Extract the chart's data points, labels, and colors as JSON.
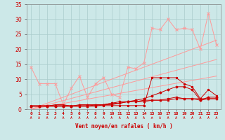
{
  "xlabel": "Vent moyen/en rafales ( km/h )",
  "bg_color": "#cce8e8",
  "grid_color": "#aacccc",
  "x": [
    0,
    1,
    2,
    3,
    4,
    5,
    6,
    7,
    8,
    9,
    10,
    11,
    12,
    13,
    14,
    15,
    16,
    17,
    18,
    19,
    20,
    21,
    22,
    23
  ],
  "line_light1": [
    14,
    8.5,
    8.5,
    8.5,
    1.5,
    7,
    11,
    4,
    8.5,
    10.5,
    5,
    4,
    14,
    13.5,
    15.5,
    27,
    26.5,
    30,
    26.5,
    27,
    26.5,
    20,
    32,
    21.5
  ],
  "line_light_slope1": [
    0.0,
    0.48,
    0.96,
    1.44,
    1.92,
    2.4,
    2.88,
    3.36,
    3.84,
    4.32,
    4.8,
    5.28,
    5.76,
    6.24,
    6.72,
    7.2,
    7.68,
    8.16,
    8.64,
    9.12,
    9.6,
    10.08,
    10.56,
    11.04
  ],
  "line_light_slope2": [
    0.0,
    0.72,
    1.44,
    2.16,
    2.88,
    3.6,
    4.32,
    5.04,
    5.76,
    6.48,
    7.2,
    7.92,
    8.64,
    9.36,
    10.08,
    10.8,
    11.52,
    12.24,
    12.96,
    13.68,
    14.4,
    15.12,
    15.84,
    16.56
  ],
  "line_light_slope3": [
    0.0,
    1.0,
    2.0,
    3.0,
    4.0,
    5.0,
    6.0,
    7.0,
    8.0,
    9.0,
    10.0,
    11.0,
    12.0,
    13.0,
    14.0,
    15.0,
    16.0,
    17.0,
    18.0,
    19.0,
    20.0,
    21.0,
    22.0,
    23.0
  ],
  "line_dark1": [
    1.2,
    1.2,
    1.2,
    1.2,
    1.2,
    1.2,
    1.2,
    1.2,
    1.2,
    1.2,
    1.2,
    1.2,
    1.2,
    1.2,
    1.2,
    10.5,
    10.5,
    10.5,
    10.5,
    8.5,
    7.5,
    3.5,
    6.5,
    4.5
  ],
  "line_dark2": [
    1.0,
    1.0,
    1.0,
    1.0,
    1.0,
    1.0,
    1.5,
    1.5,
    1.5,
    1.5,
    2.0,
    2.5,
    2.5,
    3.0,
    3.5,
    4.5,
    5.5,
    6.5,
    7.5,
    7.5,
    6.5,
    3.0,
    4.0,
    4.0
  ],
  "line_dark3": [
    1.0,
    1.0,
    1.0,
    1.0,
    1.0,
    1.0,
    1.0,
    1.0,
    1.0,
    1.5,
    1.5,
    2.0,
    2.5,
    2.5,
    3.0,
    3.0,
    3.0,
    3.5,
    4.0,
    3.5,
    3.5,
    3.0,
    3.5,
    3.5
  ],
  "line_dark4": [
    1.0,
    1.0,
    1.0,
    1.5,
    1.5,
    1.0,
    1.0,
    1.0,
    1.5,
    1.5,
    2.0,
    2.0,
    2.5,
    2.5,
    2.5,
    3.0,
    3.0,
    3.0,
    3.5,
    3.5,
    3.5,
    3.5,
    3.5,
    3.5
  ],
  "color_light": "#ff9999",
  "color_dark": "#cc0000",
  "ylim": [
    0,
    35
  ],
  "yticks": [
    0,
    5,
    10,
    15,
    20,
    25,
    30,
    35
  ],
  "xlim": [
    -0.5,
    23.5
  ],
  "xtick_labels": [
    "0",
    "1",
    "2",
    "3",
    "4",
    "5",
    "6",
    "7",
    "8",
    "9",
    "10",
    "11",
    "12",
    "13",
    "14",
    "15",
    "16",
    "17",
    "18",
    "19",
    "20",
    "21",
    "22",
    "23"
  ]
}
